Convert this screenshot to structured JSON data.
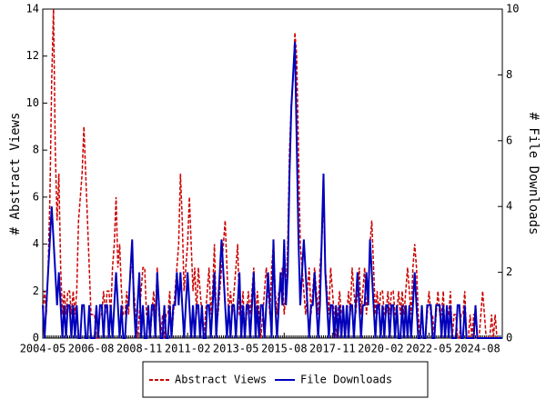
{
  "chart_data": {
    "type": "line",
    "x": [
      "2004-05",
      "2004-06",
      "2004-07",
      "2004-08",
      "2004-09",
      "2004-10",
      "2004-11",
      "2004-12",
      "2005-01",
      "2005-02",
      "2005-03",
      "2005-04",
      "2005-05",
      "2005-06",
      "2005-07",
      "2005-08",
      "2005-09",
      "2005-10",
      "2005-11",
      "2005-12",
      "2006-01",
      "2006-02",
      "2006-03",
      "2006-04",
      "2006-05",
      "2006-06",
      "2006-07",
      "2006-08",
      "2006-09",
      "2006-10",
      "2006-11",
      "2006-12",
      "2007-01",
      "2007-02",
      "2007-03",
      "2007-04",
      "2007-05",
      "2007-06",
      "2007-07",
      "2007-08",
      "2007-09",
      "2007-10",
      "2007-11",
      "2007-12",
      "2008-01",
      "2008-02",
      "2008-03",
      "2008-04",
      "2008-05",
      "2008-06",
      "2008-07",
      "2008-08",
      "2008-09",
      "2008-10",
      "2008-11",
      "2008-12",
      "2009-01",
      "2009-02",
      "2009-03",
      "2009-04",
      "2009-05",
      "2009-06",
      "2009-07",
      "2009-08",
      "2009-09",
      "2009-10",
      "2009-11",
      "2009-12",
      "2010-01",
      "2010-02",
      "2010-03",
      "2010-04",
      "2010-05",
      "2010-06",
      "2010-07",
      "2010-08",
      "2010-09",
      "2010-10",
      "2010-11",
      "2010-12",
      "2011-01",
      "2011-02",
      "2011-03",
      "2011-04",
      "2011-05",
      "2011-06",
      "2011-07",
      "2011-08",
      "2011-09",
      "2011-10",
      "2011-11",
      "2011-12",
      "2012-01",
      "2012-02",
      "2012-03",
      "2012-04",
      "2012-05",
      "2012-06",
      "2012-07",
      "2012-08",
      "2012-09",
      "2012-10",
      "2012-11",
      "2012-12",
      "2013-01",
      "2013-02",
      "2013-03",
      "2013-04",
      "2013-05",
      "2013-06",
      "2013-07",
      "2013-08",
      "2013-09",
      "2013-10",
      "2013-11",
      "2013-12",
      "2014-01",
      "2014-02",
      "2014-03",
      "2014-04",
      "2014-05",
      "2014-06",
      "2014-07",
      "2014-08",
      "2014-09",
      "2014-10",
      "2014-11",
      "2014-12",
      "2015-01",
      "2015-02",
      "2015-03",
      "2015-04",
      "2015-05",
      "2015-06",
      "2015-07",
      "2015-08",
      "2015-09",
      "2015-10",
      "2015-11",
      "2015-12",
      "2016-01",
      "2016-02",
      "2016-03",
      "2016-04",
      "2016-05",
      "2016-06",
      "2016-07",
      "2016-08",
      "2016-09",
      "2016-10",
      "2016-11",
      "2016-12",
      "2017-01",
      "2017-02",
      "2017-03",
      "2017-04",
      "2017-05",
      "2017-06",
      "2017-07",
      "2017-08",
      "2017-09",
      "2017-10",
      "2017-11",
      "2017-12",
      "2018-01",
      "2018-02",
      "2018-03",
      "2018-04",
      "2018-05",
      "2018-06",
      "2018-07",
      "2018-08",
      "2018-09",
      "2018-10",
      "2018-11",
      "2018-12",
      "2019-01",
      "2019-02",
      "2019-03",
      "2019-04",
      "2019-05",
      "2019-06",
      "2019-07",
      "2019-08",
      "2019-09",
      "2019-10",
      "2019-11",
      "2019-12",
      "2020-01",
      "2020-02",
      "2020-03",
      "2020-04",
      "2020-05",
      "2020-06",
      "2020-07",
      "2020-08",
      "2020-09",
      "2020-10",
      "2020-11",
      "2020-12",
      "2021-01",
      "2021-02",
      "2021-03",
      "2021-04",
      "2021-05",
      "2021-06",
      "2021-07",
      "2021-08",
      "2021-09",
      "2021-10",
      "2021-11",
      "2021-12",
      "2022-01",
      "2022-02",
      "2022-03",
      "2022-04",
      "2022-05",
      "2022-06",
      "2022-07",
      "2022-08",
      "2022-09",
      "2022-10",
      "2022-11",
      "2022-12",
      "2023-01",
      "2023-02",
      "2023-03",
      "2023-04",
      "2023-05",
      "2023-06",
      "2023-07",
      "2023-08",
      "2023-09",
      "2023-10",
      "2023-11",
      "2023-12",
      "2024-01",
      "2024-02",
      "2024-03",
      "2024-04",
      "2024-05",
      "2024-06",
      "2024-07",
      "2024-08",
      "2024-09",
      "2024-10",
      "2024-11",
      "2024-12",
      "2025-01",
      "2025-02",
      "2025-03",
      "2025-04",
      "2025-05",
      "2025-06",
      "2025-07",
      "2025-08",
      "2025-09",
      "2025-10"
    ],
    "xticks": [
      "2004-05",
      "2006-08",
      "2008-11",
      "2011-02",
      "2013-05",
      "2015-08",
      "2017-11",
      "2020-02",
      "2022-05",
      "2024-08"
    ],
    "ylabel": "# Abstract Views",
    "y2label": "# File Downloads",
    "ylim": [
      0,
      14
    ],
    "yticks": [
      0,
      2,
      4,
      6,
      8,
      10,
      12,
      14
    ],
    "y2lim": [
      0,
      10
    ],
    "y2ticks": [
      0,
      2,
      4,
      6,
      8,
      10
    ],
    "series": [
      {
        "name": "Abstract Views",
        "color": "#cc0000",
        "axis": "y",
        "values": [
          1,
          2,
          1,
          3,
          6,
          11,
          14,
          8,
          5,
          7,
          3,
          1,
          2,
          1,
          2,
          2,
          1,
          2,
          1,
          2,
          5,
          6,
          7,
          9,
          7,
          5,
          3,
          1,
          1,
          1,
          0,
          0,
          1,
          1,
          2,
          1,
          2,
          2,
          1,
          3,
          4,
          6,
          3,
          4,
          2,
          1,
          1,
          2,
          1,
          3,
          3,
          2,
          1,
          0,
          1,
          2,
          3,
          3,
          1,
          1,
          0,
          1,
          2,
          1,
          3,
          1,
          0,
          1,
          0,
          1,
          1,
          2,
          0,
          1,
          2,
          3,
          4,
          7,
          5,
          2,
          3,
          4,
          6,
          4,
          2,
          3,
          1,
          3,
          2,
          1,
          0,
          1,
          2,
          3,
          1,
          2,
          4,
          1,
          1,
          2,
          3,
          4,
          5,
          3,
          1,
          2,
          1,
          2,
          3,
          4,
          1,
          1,
          2,
          0,
          1,
          2,
          1,
          2,
          3,
          1,
          2,
          1,
          0,
          1,
          2,
          3,
          2,
          1,
          3,
          4,
          2,
          1,
          2,
          2,
          3,
          1,
          2,
          4,
          8,
          10,
          11,
          13,
          12,
          8,
          4,
          3,
          2,
          1,
          2,
          3,
          1,
          2,
          3,
          2,
          1,
          3,
          4,
          6,
          3,
          2,
          1,
          3,
          2,
          1,
          0,
          1,
          2,
          1,
          1,
          0,
          1,
          2,
          1,
          3,
          2,
          1,
          2,
          3,
          1,
          2,
          3,
          1,
          2,
          4,
          5,
          3,
          1,
          2,
          1,
          2,
          2,
          1,
          1,
          2,
          1,
          2,
          2,
          1,
          1,
          2,
          1,
          2,
          1,
          2,
          3,
          2,
          1,
          3,
          4,
          3,
          1,
          0,
          1,
          0,
          0,
          1,
          2,
          1,
          1,
          0,
          1,
          2,
          1,
          1,
          2,
          0,
          1,
          1,
          2,
          0,
          1,
          1,
          0,
          0,
          1,
          1,
          2,
          0,
          0,
          1,
          0,
          1,
          1,
          0,
          0,
          1,
          2,
          1,
          0,
          0,
          0,
          1,
          0,
          1,
          0,
          0,
          0,
          0
        ]
      },
      {
        "name": "File Downloads",
        "color": "#0000bb",
        "axis": "y2",
        "values": [
          1,
          0,
          1,
          2,
          3,
          4,
          3,
          2,
          1,
          2,
          1,
          0,
          1,
          0,
          1,
          1,
          0,
          1,
          0,
          1,
          0,
          0,
          1,
          1,
          0,
          0,
          1,
          0,
          0,
          0,
          1,
          0,
          1,
          1,
          0,
          1,
          1,
          0,
          1,
          0,
          1,
          2,
          1,
          0,
          1,
          0,
          0,
          1,
          1,
          2,
          3,
          1,
          0,
          1,
          2,
          0,
          1,
          0,
          0,
          1,
          0,
          1,
          1,
          0,
          2,
          1,
          0,
          0,
          1,
          0,
          0,
          1,
          0,
          1,
          1,
          2,
          1,
          2,
          1,
          0,
          1,
          2,
          1,
          0,
          1,
          0,
          1,
          1,
          0,
          1,
          0,
          0,
          1,
          1,
          0,
          1,
          2,
          0,
          1,
          2,
          3,
          2,
          1,
          0,
          1,
          0,
          1,
          1,
          0,
          1,
          2,
          0,
          1,
          0,
          1,
          1,
          0,
          1,
          2,
          0,
          1,
          0,
          1,
          1,
          0,
          1,
          2,
          1,
          0,
          3,
          1,
          0,
          1,
          2,
          1,
          3,
          1,
          2,
          5,
          7,
          8,
          9,
          6,
          3,
          1,
          2,
          3,
          2,
          1,
          0,
          1,
          1,
          2,
          1,
          0,
          1,
          3,
          5,
          2,
          1,
          0,
          1,
          1,
          0,
          1,
          0,
          1,
          0,
          1,
          0,
          1,
          0,
          1,
          1,
          0,
          1,
          2,
          1,
          0,
          1,
          1,
          2,
          1,
          3,
          2,
          1,
          0,
          1,
          1,
          0,
          1,
          0,
          1,
          1,
          0,
          1,
          1,
          0,
          1,
          0,
          0,
          1,
          0,
          1,
          0,
          1,
          0,
          1,
          2,
          1,
          0,
          0,
          1,
          0,
          0,
          1,
          1,
          1,
          0,
          0,
          1,
          1,
          1,
          0,
          1,
          0,
          1,
          0,
          1,
          0,
          0,
          0,
          1,
          1,
          0,
          0,
          1,
          0,
          0,
          0,
          0,
          0,
          1,
          0,
          0,
          0,
          0,
          0,
          0,
          0,
          0,
          0,
          0,
          0,
          0,
          0,
          0,
          0
        ]
      }
    ]
  }
}
